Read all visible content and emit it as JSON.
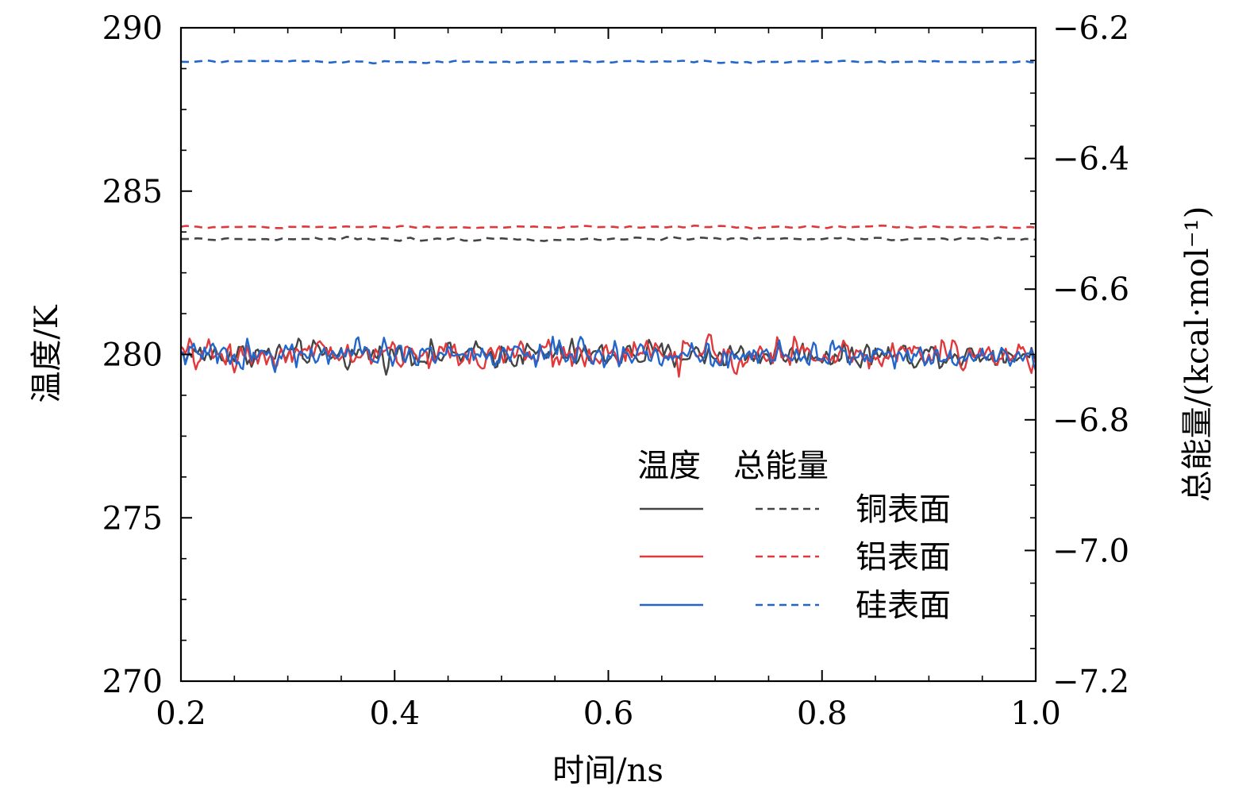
{
  "chart_data": {
    "type": "line",
    "title": "",
    "xlabel": "时间/ns",
    "ylabel_left": "温度/K",
    "ylabel_right": "总能量/(kcal·mol⁻¹)",
    "xlim": [
      0.2,
      1.0
    ],
    "ylim_left": [
      270,
      290
    ],
    "ylim_right": [
      -7.2,
      -6.2
    ],
    "x_ticks": [
      "0.2",
      "0.4",
      "0.6",
      "0.8",
      "1.0"
    ],
    "y_left_ticks": [
      "270",
      "275",
      "280",
      "285",
      "290"
    ],
    "y_right_ticks": [
      "−7.2",
      "−7.0",
      "−6.8",
      "−6.6",
      "−6.4",
      "−6.2"
    ],
    "grid": false,
    "legend": {
      "position": "bottom-right",
      "header_temperature": "温度",
      "header_energy": "总能量",
      "entries": [
        "铜表面",
        "铝表面",
        "硅表面"
      ]
    },
    "series": [
      {
        "name": "铜表面 温度",
        "axis": "left",
        "style": "solid",
        "color": "#444444",
        "mean": 280.0,
        "amplitude": 0.8,
        "samples": 400
      },
      {
        "name": "铝表面 温度",
        "axis": "left",
        "style": "solid",
        "color": "#e0383b",
        "mean": 280.0,
        "amplitude": 0.9,
        "samples": 400
      },
      {
        "name": "硅表面 温度",
        "axis": "left",
        "style": "solid",
        "color": "#2266cc",
        "mean": 280.0,
        "amplitude": 0.8,
        "samples": 400
      },
      {
        "name": "铜表面 总能量",
        "axis": "right",
        "style": "dashed",
        "color": "#444444",
        "mean": -6.523,
        "amplitude": 0.005,
        "samples": 160
      },
      {
        "name": "铝表面 总能量",
        "axis": "right",
        "style": "dashed",
        "color": "#e0383b",
        "mean": -6.505,
        "amplitude": 0.004,
        "samples": 160
      },
      {
        "name": "硅表面 总能量",
        "axis": "right",
        "style": "dashed",
        "color": "#2266cc",
        "mean": -6.252,
        "amplitude": 0.004,
        "samples": 160
      }
    ]
  }
}
